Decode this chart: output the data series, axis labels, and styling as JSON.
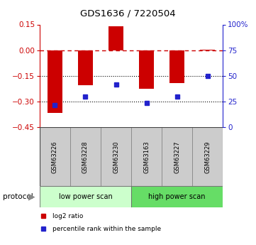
{
  "title": "GDS1636 / 7220504",
  "samples": [
    "GSM63226",
    "GSM63228",
    "GSM63230",
    "GSM63163",
    "GSM63227",
    "GSM63229"
  ],
  "log2_ratio": [
    -0.365,
    -0.205,
    0.138,
    -0.225,
    -0.19,
    0.005
  ],
  "percentile_rank": [
    22,
    30,
    42,
    24,
    30,
    50
  ],
  "left_ylim": [
    -0.45,
    0.15
  ],
  "right_ylim": [
    0,
    100
  ],
  "left_yticks": [
    0.15,
    0,
    -0.15,
    -0.3,
    -0.45
  ],
  "right_yticks": [
    100,
    75,
    50,
    25,
    0
  ],
  "bar_color": "#cc0000",
  "dot_color": "#2222cc",
  "dotted_lines": [
    -0.15,
    -0.3
  ],
  "protocol_groups": [
    {
      "label": "low power scan",
      "start": 0,
      "end": 2,
      "color": "#ccffcc"
    },
    {
      "label": "high power scan",
      "start": 3,
      "end": 5,
      "color": "#66dd66"
    }
  ],
  "legend_items": [
    {
      "label": "log2 ratio",
      "color": "#cc0000"
    },
    {
      "label": "percentile rank within the sample",
      "color": "#2222cc"
    }
  ],
  "protocol_label": "protocol",
  "bar_width": 0.5
}
